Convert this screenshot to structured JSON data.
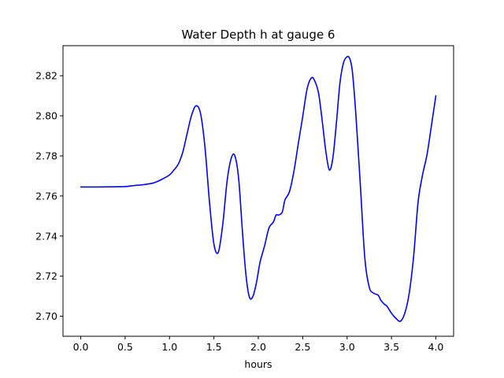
{
  "chart_data": {
    "type": "line",
    "title": "Water Depth h at gauge 6",
    "xlabel": "hours",
    "ylabel": "",
    "xlim": [
      -0.2,
      4.2
    ],
    "ylim": [
      2.69,
      2.835
    ],
    "xticks": [
      0.0,
      0.5,
      1.0,
      1.5,
      2.0,
      2.5,
      3.0,
      3.5,
      4.0
    ],
    "xtick_labels": [
      "0.0",
      "0.5",
      "1.0",
      "1.5",
      "2.0",
      "2.5",
      "3.0",
      "3.5",
      "4.0"
    ],
    "yticks": [
      2.7,
      2.72,
      2.74,
      2.76,
      2.78,
      2.8,
      2.82
    ],
    "ytick_labels": [
      "2.70",
      "2.72",
      "2.74",
      "2.76",
      "2.78",
      "2.80",
      "2.82"
    ],
    "grid": false,
    "line_color": "#0000ff",
    "series": [
      {
        "x": [
          0.0,
          0.2,
          0.4,
          0.5,
          0.6,
          0.7,
          0.8,
          0.85,
          0.9,
          1.0,
          1.05,
          1.1,
          1.15,
          1.2,
          1.25,
          1.3,
          1.35,
          1.4,
          1.45,
          1.5,
          1.55,
          1.6,
          1.65,
          1.7,
          1.74,
          1.78,
          1.82,
          1.86,
          1.9,
          1.94,
          1.98,
          2.02,
          2.07,
          2.12,
          2.17,
          2.2,
          2.23,
          2.27,
          2.3,
          2.35,
          2.4,
          2.45,
          2.5,
          2.55,
          2.6,
          2.64,
          2.68,
          2.72,
          2.76,
          2.8,
          2.84,
          2.88,
          2.92,
          2.96,
          3.0,
          3.03,
          3.06,
          3.1,
          3.15,
          3.2,
          3.25,
          3.3,
          3.35,
          3.38,
          3.42,
          3.45,
          3.5,
          3.55,
          3.6,
          3.65,
          3.7,
          3.75,
          3.8,
          3.85,
          3.9,
          3.95,
          4.0
        ],
        "y": [
          2.7645,
          2.7645,
          2.7646,
          2.7647,
          2.7652,
          2.7656,
          2.7663,
          2.767,
          2.768,
          2.7705,
          2.773,
          2.776,
          2.782,
          2.7915,
          2.8005,
          2.805,
          2.801,
          2.784,
          2.757,
          2.736,
          2.732,
          2.746,
          2.768,
          2.7795,
          2.7795,
          2.768,
          2.743,
          2.721,
          2.7095,
          2.71,
          2.717,
          2.727,
          2.735,
          2.744,
          2.747,
          2.7505,
          2.7505,
          2.752,
          2.758,
          2.762,
          2.772,
          2.786,
          2.7995,
          2.8135,
          2.819,
          2.817,
          2.811,
          2.7975,
          2.7825,
          2.773,
          2.779,
          2.7965,
          2.8165,
          2.8265,
          2.8295,
          2.8285,
          2.822,
          2.8,
          2.765,
          2.729,
          2.7145,
          2.7115,
          2.7105,
          2.708,
          2.706,
          2.705,
          2.7015,
          2.699,
          2.6975,
          2.7015,
          2.7115,
          2.73,
          2.757,
          2.7705,
          2.7805,
          2.795,
          2.81
        ]
      }
    ]
  }
}
